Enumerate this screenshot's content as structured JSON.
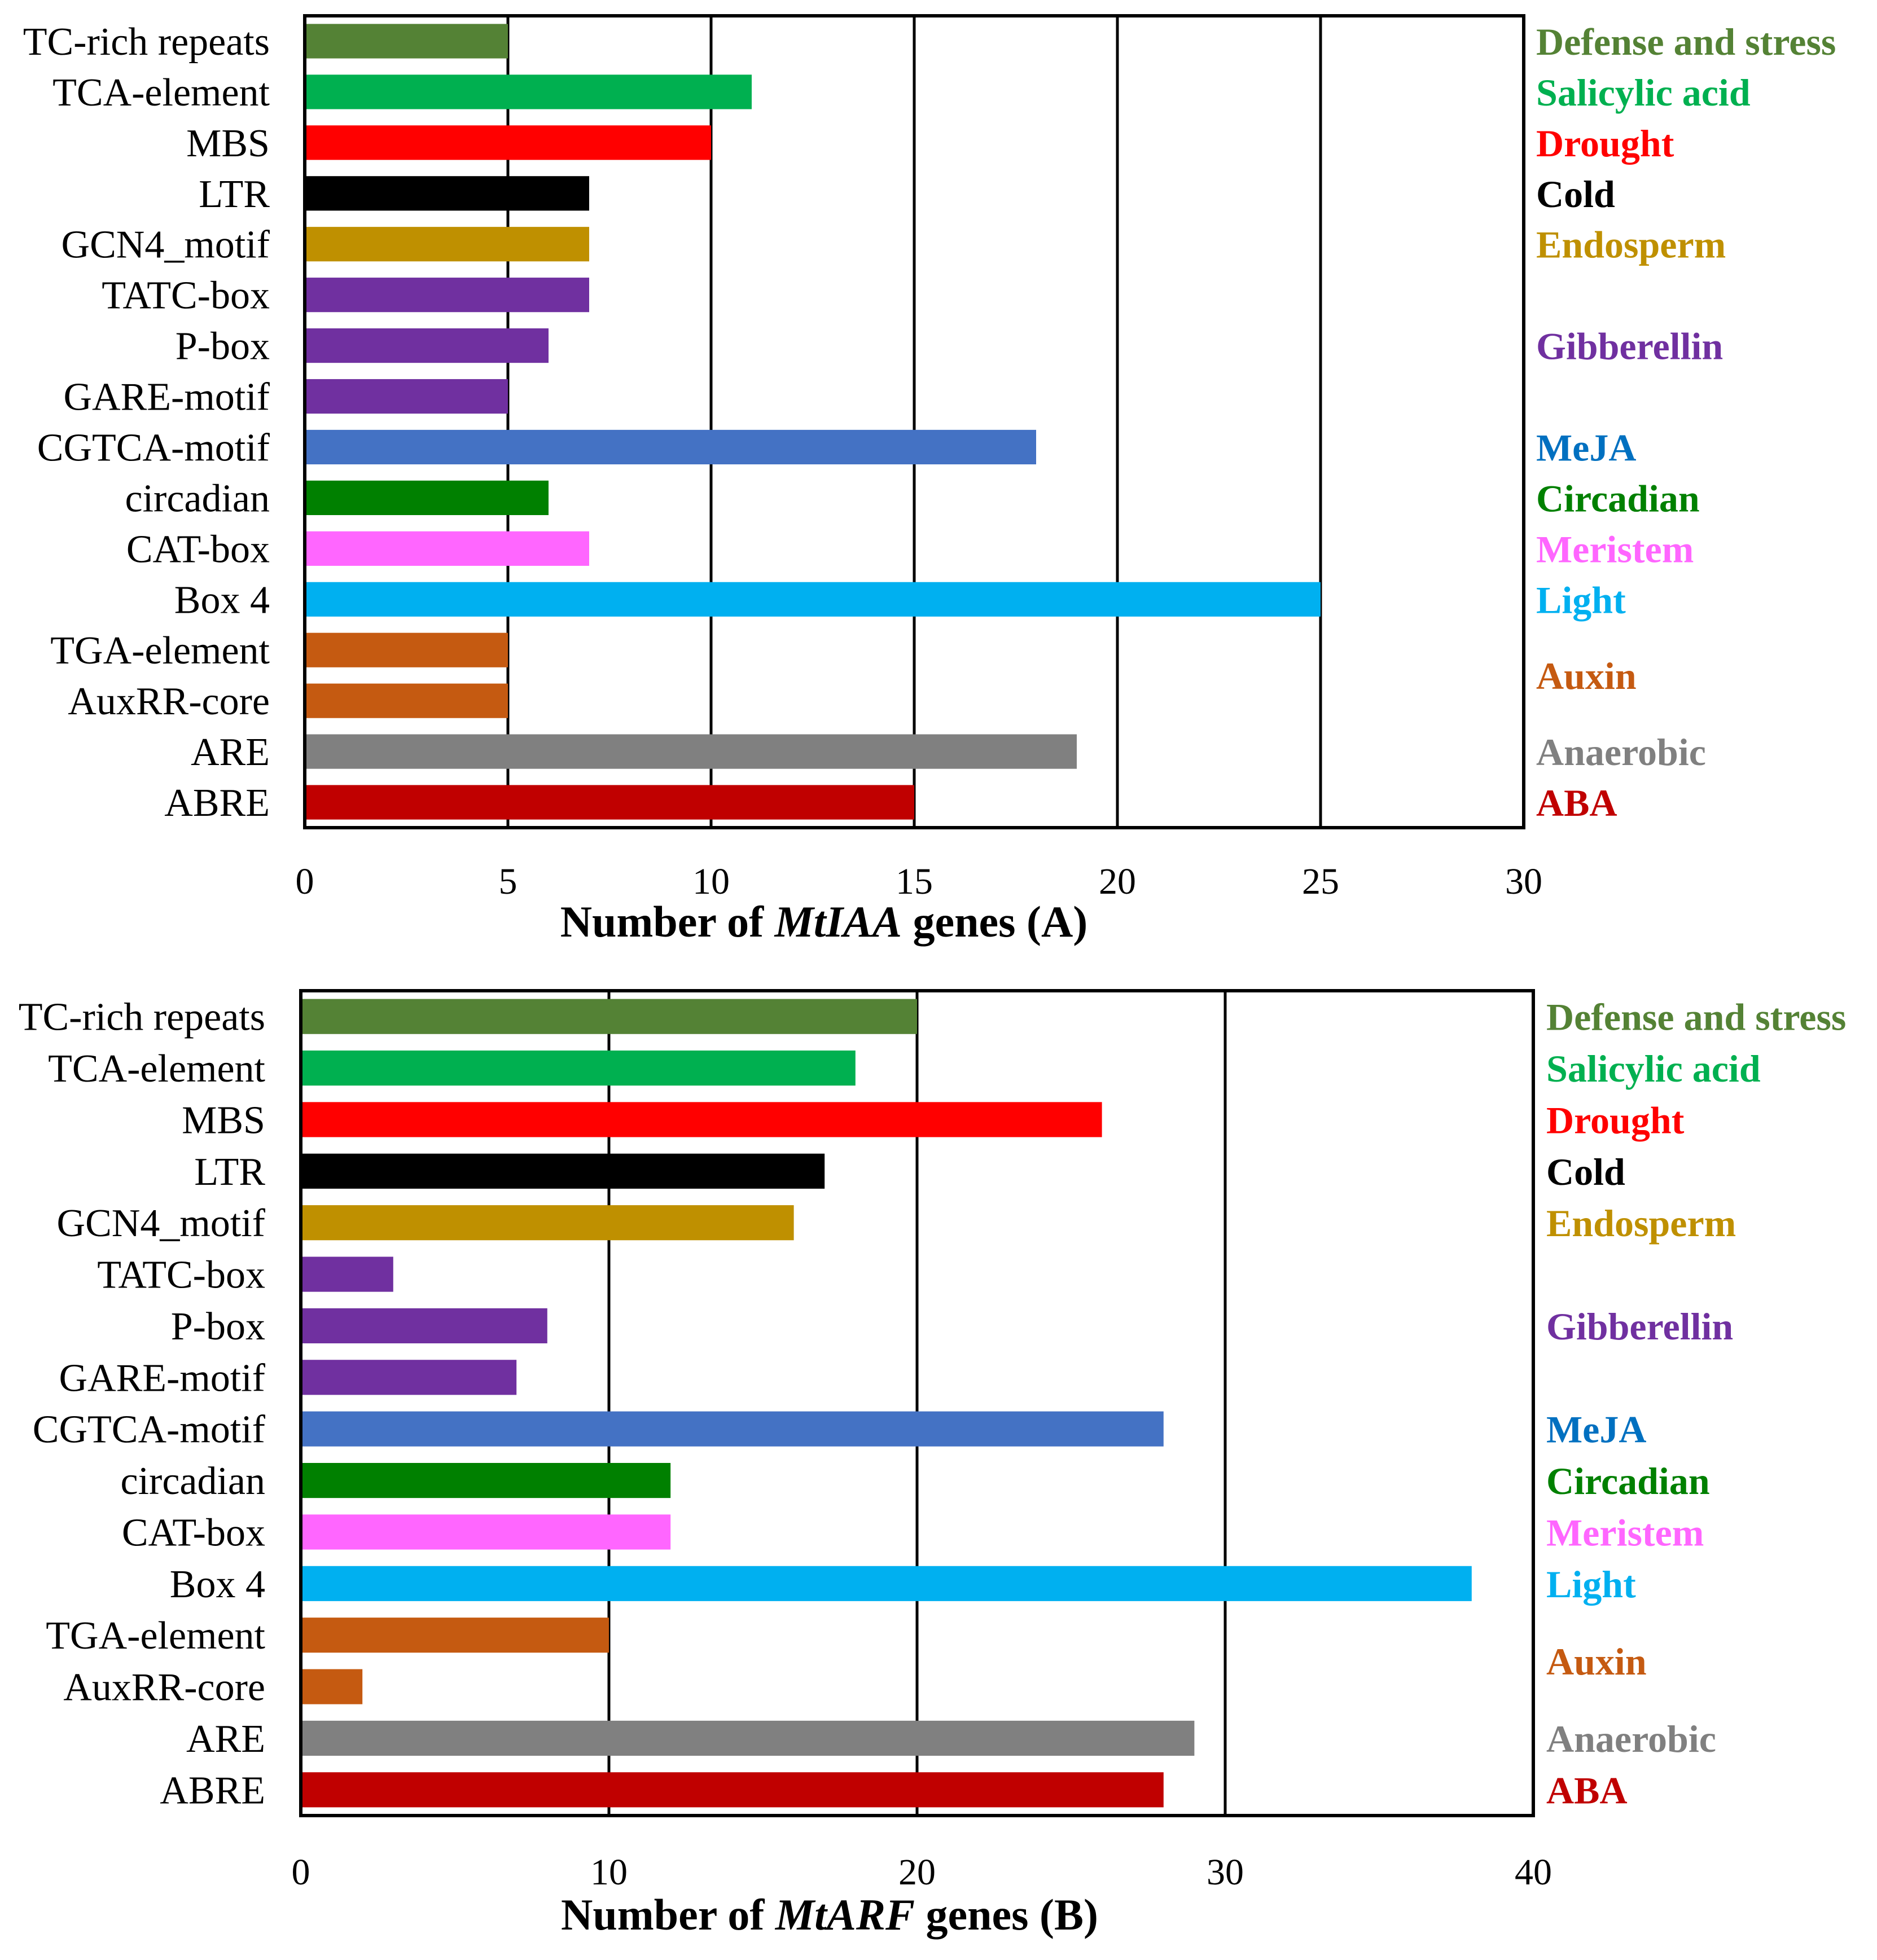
{
  "chart_data": [
    {
      "type": "bar",
      "orientation": "horizontal",
      "panel": "A",
      "categories": [
        "TC-rich repeats",
        "TCA-element",
        "MBS",
        "LTR",
        "GCN4_motif",
        "TATC-box",
        "P-box",
        "GARE-motif",
        "CGTCA-motif",
        "circadian",
        "CAT-box",
        "Box 4",
        "TGA-element",
        "AuxRR-core",
        "ARE",
        "ABRE"
      ],
      "values": [
        5,
        11,
        10,
        7,
        7,
        7,
        6,
        5,
        18,
        6,
        7,
        25,
        5,
        5,
        19,
        15
      ],
      "bar_colors": [
        "#548235",
        "#00B050",
        "#FF0000",
        "#000000",
        "#BF9000",
        "#7030A0",
        "#7030A0",
        "#7030A0",
        "#4472C4",
        "#008000",
        "#FF66FF",
        "#00B0F0",
        "#C55A11",
        "#C55A11",
        "#808080",
        "#C00000"
      ],
      "xlabel_parts": [
        "Number of ",
        "MtIAA",
        " genes (A)"
      ],
      "xlim": [
        0,
        30
      ],
      "xticks": [
        0,
        5,
        10,
        15,
        20,
        25,
        30
      ],
      "grid": true,
      "groups": [
        {
          "label": "Defense and stress",
          "color": "#548235",
          "from": 0,
          "to": 0
        },
        {
          "label": "Salicylic acid",
          "color": "#00B050",
          "from": 1,
          "to": 1
        },
        {
          "label": "Drought",
          "color": "#FF0000",
          "from": 2,
          "to": 2
        },
        {
          "label": "Cold",
          "color": "#000000",
          "from": 3,
          "to": 3
        },
        {
          "label": "Endosperm",
          "color": "#BF9000",
          "from": 4,
          "to": 4
        },
        {
          "label": "Gibberellin",
          "color": "#7030A0",
          "from": 5,
          "to": 7
        },
        {
          "label": "MeJA",
          "color": "#0070C0",
          "from": 8,
          "to": 8
        },
        {
          "label": "Circadian",
          "color": "#008000",
          "from": 9,
          "to": 9
        },
        {
          "label": "Meristem",
          "color": "#FF66FF",
          "from": 10,
          "to": 10
        },
        {
          "label": "Light",
          "color": "#00B0F0",
          "from": 11,
          "to": 11
        },
        {
          "label": "Auxin",
          "color": "#C55A11",
          "from": 12,
          "to": 13
        },
        {
          "label": "Anaerobic",
          "color": "#808080",
          "from": 14,
          "to": 14
        },
        {
          "label": "ABA",
          "color": "#C00000",
          "from": 15,
          "to": 15
        }
      ]
    },
    {
      "type": "bar",
      "orientation": "horizontal",
      "panel": "B",
      "categories": [
        "TC-rich repeats",
        "TCA-element",
        "MBS",
        "LTR",
        "GCN4_motif",
        "TATC-box",
        "P-box",
        "GARE-motif",
        "CGTCA-motif",
        "circadian",
        "CAT-box",
        "Box 4",
        "TGA-element",
        "AuxRR-core",
        "ARE",
        "ABRE"
      ],
      "values": [
        20,
        18,
        26,
        17,
        16,
        3,
        8,
        7,
        28,
        12,
        12,
        38,
        10,
        2,
        29,
        28
      ],
      "bar_colors": [
        "#548235",
        "#00B050",
        "#FF0000",
        "#000000",
        "#BF9000",
        "#7030A0",
        "#7030A0",
        "#7030A0",
        "#4472C4",
        "#008000",
        "#FF66FF",
        "#00B0F0",
        "#C55A11",
        "#C55A11",
        "#808080",
        "#C00000"
      ],
      "xlabel_parts": [
        "Number of ",
        "MtARF",
        " genes (B)"
      ],
      "xlim": [
        0,
        40
      ],
      "xticks": [
        0,
        10,
        20,
        30,
        40
      ],
      "grid": true,
      "groups": [
        {
          "label": "Defense and stress",
          "color": "#548235",
          "from": 0,
          "to": 0
        },
        {
          "label": "Salicylic acid",
          "color": "#00B050",
          "from": 1,
          "to": 1
        },
        {
          "label": "Drought",
          "color": "#FF0000",
          "from": 2,
          "to": 2
        },
        {
          "label": "Cold",
          "color": "#000000",
          "from": 3,
          "to": 3
        },
        {
          "label": "Endosperm",
          "color": "#BF9000",
          "from": 4,
          "to": 4
        },
        {
          "label": "Gibberellin",
          "color": "#7030A0",
          "from": 5,
          "to": 7
        },
        {
          "label": "MeJA",
          "color": "#0070C0",
          "from": 8,
          "to": 8
        },
        {
          "label": "Circadian",
          "color": "#008000",
          "from": 9,
          "to": 9
        },
        {
          "label": "Meristem",
          "color": "#FF66FF",
          "from": 10,
          "to": 10
        },
        {
          "label": "Light",
          "color": "#00B0F0",
          "from": 11,
          "to": 11
        },
        {
          "label": "Auxin",
          "color": "#C55A11",
          "from": 12,
          "to": 13
        },
        {
          "label": "Anaerobic",
          "color": "#808080",
          "from": 14,
          "to": 14
        },
        {
          "label": "ABA",
          "color": "#C00000",
          "from": 15,
          "to": 15
        }
      ]
    }
  ]
}
